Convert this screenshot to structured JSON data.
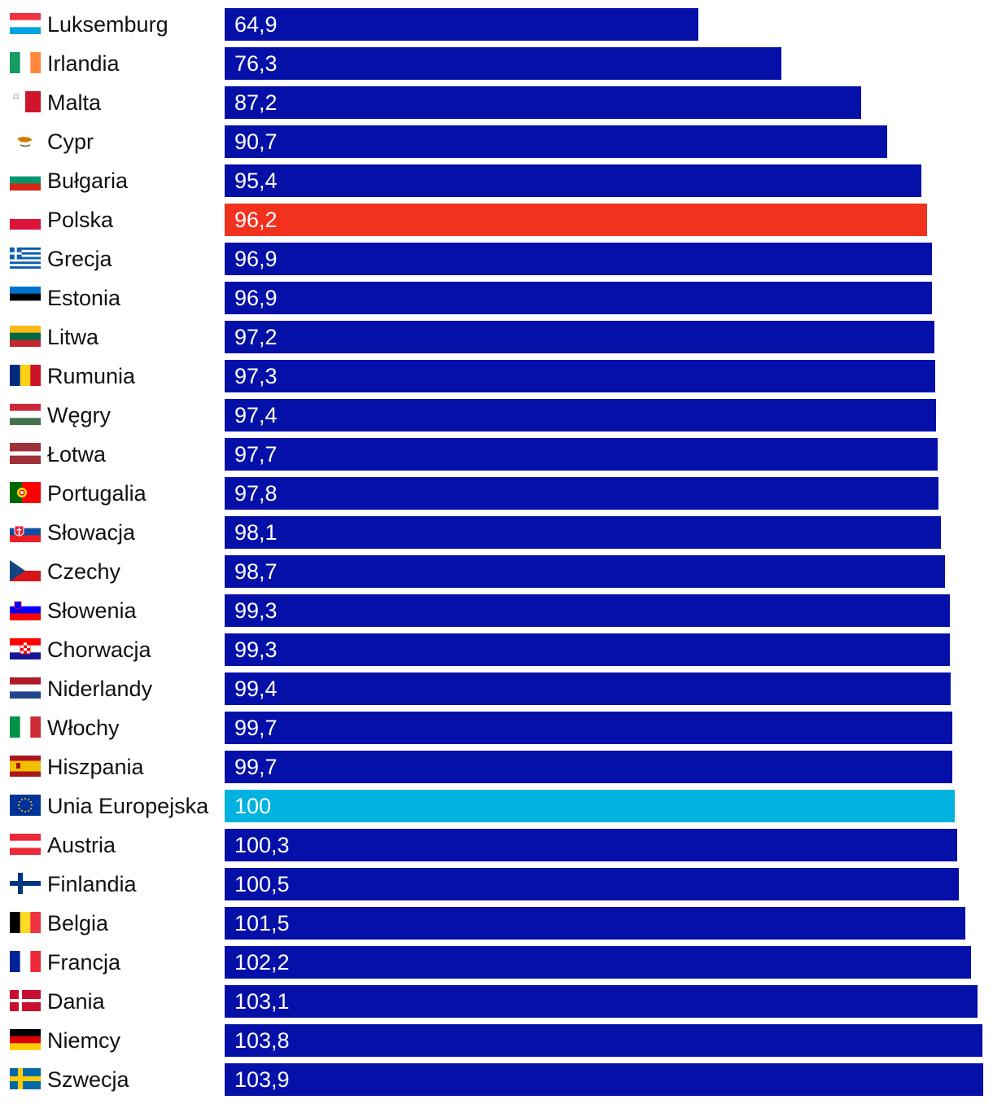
{
  "chart_data": {
    "type": "bar",
    "orientation": "horizontal",
    "title": "",
    "xlabel": "",
    "ylabel": "",
    "xlim": [
      0,
      103.9
    ],
    "grid": false,
    "colors": {
      "default": "#0510A8",
      "highlight_pl": "#F0321E",
      "highlight_eu": "#00B2E0"
    },
    "categories": [
      "Luksemburg",
      "Irlandia",
      "Malta",
      "Cypr",
      "Bułgaria",
      "Polska",
      "Grecja",
      "Estonia",
      "Litwa",
      "Rumunia",
      "Węgry",
      "Łotwa",
      "Portugalia",
      "Słowacja",
      "Czechy",
      "Słowenia",
      "Chorwacja",
      "Niderlandy",
      "Włochy",
      "Hiszpania",
      "Unia Europejska",
      "Austria",
      "Finlandia",
      "Belgia",
      "Francja",
      "Dania",
      "Niemcy",
      "Szwecja"
    ],
    "values": [
      64.9,
      76.3,
      87.2,
      90.7,
      95.4,
      96.2,
      96.9,
      96.9,
      97.2,
      97.3,
      97.4,
      97.7,
      97.8,
      98.1,
      98.7,
      99.3,
      99.3,
      99.4,
      99.7,
      99.7,
      100,
      100.3,
      100.5,
      101.5,
      102.2,
      103.1,
      103.8,
      103.9
    ],
    "value_labels": [
      "64,9",
      "76,3",
      "87,2",
      "90,7",
      "95,4",
      "96,2",
      "96,9",
      "96,9",
      "97,2",
      "97,3",
      "97,4",
      "97,7",
      "97,8",
      "98,1",
      "98,7",
      "99,3",
      "99,3",
      "99,4",
      "99,7",
      "99,7",
      "100",
      "100,3",
      "100,5",
      "101,5",
      "102,2",
      "103,1",
      "103,8",
      "103,9"
    ],
    "bar_colors": [
      "default",
      "default",
      "default",
      "default",
      "default",
      "highlight_pl",
      "default",
      "default",
      "default",
      "default",
      "default",
      "default",
      "default",
      "default",
      "default",
      "default",
      "default",
      "default",
      "default",
      "default",
      "highlight_eu",
      "default",
      "default",
      "default",
      "default",
      "default",
      "default",
      "default"
    ],
    "flags": [
      "lu-flag-icon",
      "ie-flag-icon",
      "mt-flag-icon",
      "cy-flag-icon",
      "bg-flag-icon",
      "pl-flag-icon",
      "gr-flag-icon",
      "ee-flag-icon",
      "lt-flag-icon",
      "ro-flag-icon",
      "hu-flag-icon",
      "lv-flag-icon",
      "pt-flag-icon",
      "sk-flag-icon",
      "cz-flag-icon",
      "si-flag-icon",
      "hr-flag-icon",
      "nl-flag-icon",
      "it-flag-icon",
      "es-flag-icon",
      "eu-flag-icon",
      "at-flag-icon",
      "fi-flag-icon",
      "be-flag-icon",
      "fr-flag-icon",
      "dk-flag-icon",
      "de-flag-icon",
      "se-flag-icon"
    ]
  }
}
